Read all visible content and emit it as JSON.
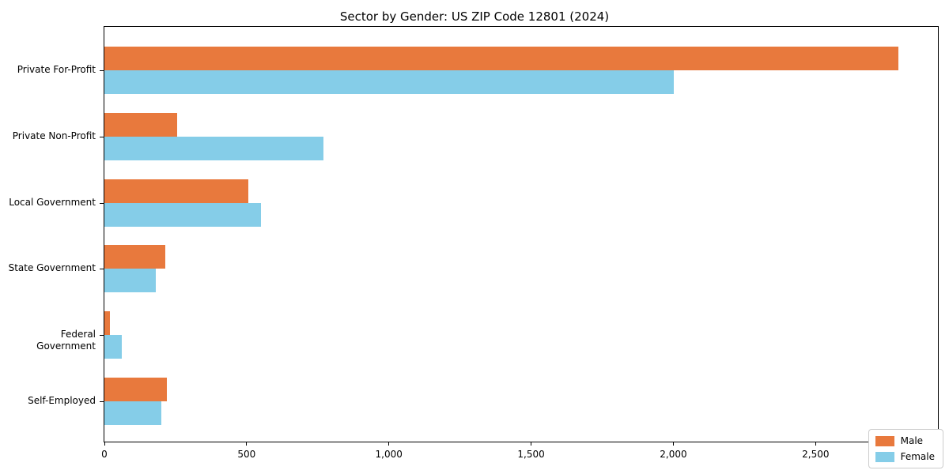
{
  "chart_data": {
    "type": "bar",
    "orientation": "horizontal",
    "title": "Sector by Gender: US ZIP Code 12801 (2024)",
    "categories": [
      "Private For-Profit",
      "Private Non-Profit",
      "Local Government",
      "State Government",
      "Federal Government",
      "Self-Employed"
    ],
    "series": [
      {
        "name": "Male",
        "color": "#e8793d",
        "values": [
          2790,
          255,
          505,
          215,
          20,
          220
        ]
      },
      {
        "name": "Female",
        "color": "#85cde8",
        "values": [
          2000,
          770,
          550,
          180,
          60,
          200
        ]
      }
    ],
    "xlabel": "",
    "ylabel": "",
    "xlim": [
      0,
      2930
    ],
    "xticks": [
      0,
      500,
      1000,
      1500,
      2000,
      2500
    ],
    "xtick_labels": [
      "0",
      "500",
      "1,000",
      "1,500",
      "2,000",
      "2,500"
    ],
    "grid": false,
    "legend_position": "lower right",
    "axis_color": "#000000"
  }
}
